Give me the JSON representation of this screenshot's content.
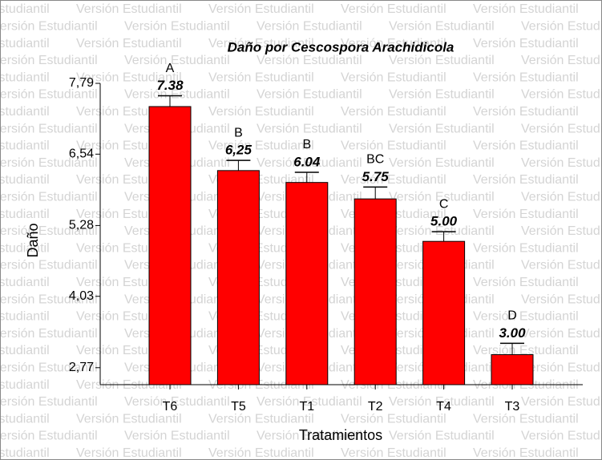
{
  "chart_data": {
    "type": "bar",
    "title": "Daño por Cescospora Arachidicola",
    "watermark": "Versión Estudiantil",
    "xlabel": "Tratamientos",
    "ylabel": "Daño",
    "categories": [
      "T6",
      "T5",
      "T1",
      "T2",
      "T4",
      "T3"
    ],
    "values": [
      7.38,
      6.25,
      6.04,
      5.75,
      5.0,
      3.0
    ],
    "value_labels": [
      "7.38",
      "6,25",
      "6.04",
      "5.75",
      "5.00",
      "3.00"
    ],
    "errors": [
      0.19,
      0.18,
      0.18,
      0.21,
      0.17,
      0.2
    ],
    "letters": [
      "A",
      "B",
      "B",
      "BC",
      "C",
      "D"
    ],
    "color": "#ff0000",
    "ylim": [
      2.47,
      7.79
    ],
    "yticks": [
      {
        "value": 2.77,
        "label": "2,77"
      },
      {
        "value": 4.03,
        "label": "4,03"
      },
      {
        "value": 5.28,
        "label": "5,28"
      },
      {
        "value": 6.54,
        "label": "6,54"
      },
      {
        "value": 7.79,
        "label": "7,79"
      }
    ]
  }
}
